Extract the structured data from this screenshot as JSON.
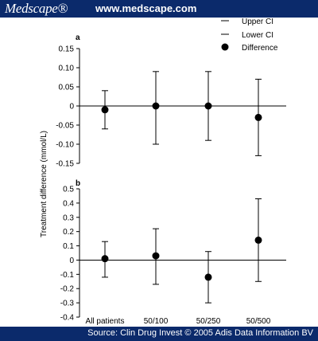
{
  "header": {
    "logo": "Medscape®",
    "site": "www.medscape.com"
  },
  "footer": {
    "source": "Source: Clin Drug Invest © 2005 Adis Data Information BV"
  },
  "chart_data": {
    "type": "scatter",
    "ylabel": "Treatment difference (mmol/L)",
    "categories": [
      "All patients",
      "50/100",
      "50/250",
      "50/500"
    ],
    "legend": [
      "Upper CI",
      "Lower CI",
      "Difference"
    ],
    "legend_position": "top-right",
    "grid": false,
    "panels": [
      {
        "label": "a",
        "ylim": [
          -0.15,
          0.15
        ],
        "yticks": [
          "0.15",
          "0.10",
          "0.05",
          "0",
          "-0.05",
          "-0.10",
          "-0.15"
        ],
        "ytick_values": [
          0.15,
          0.1,
          0.05,
          0,
          -0.05,
          -0.1,
          -0.15
        ],
        "difference": [
          -0.01,
          0.0,
          0.0,
          -0.03
        ],
        "upper_ci": [
          0.04,
          0.09,
          0.09,
          0.07
        ],
        "lower_ci": [
          -0.06,
          -0.1,
          -0.09,
          -0.13
        ]
      },
      {
        "label": "b",
        "ylim": [
          -0.4,
          0.5
        ],
        "yticks": [
          "0.5",
          "0.4",
          "0.3",
          "0.2",
          "0.1",
          "0",
          "-0.1",
          "-0.2",
          "-0.3",
          "-0.4"
        ],
        "ytick_values": [
          0.5,
          0.4,
          0.3,
          0.2,
          0.1,
          0,
          -0.1,
          -0.2,
          -0.3,
          -0.4
        ],
        "difference": [
          0.01,
          0.03,
          -0.12,
          0.14
        ],
        "upper_ci": [
          0.13,
          0.22,
          0.06,
          0.43
        ],
        "lower_ci": [
          -0.12,
          -0.17,
          -0.3,
          -0.15
        ]
      }
    ]
  }
}
